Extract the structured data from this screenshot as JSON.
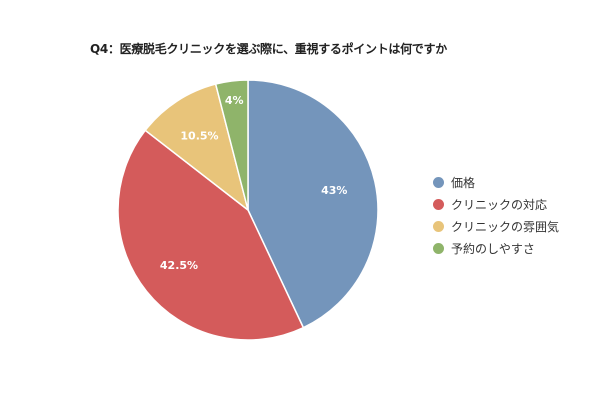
{
  "chart_data": {
    "type": "pie",
    "title": "Q4：医療脱毛クリニックを選ぶ際に、重視するポイントは何ですか",
    "categories": [
      "価格",
      "クリニックの対応",
      "クリニックの雰囲気",
      "予約のしやすさ"
    ],
    "values": [
      43,
      42.5,
      10.5,
      4
    ],
    "data_labels": [
      "43%",
      "42.5%",
      "10.5%",
      "4%"
    ],
    "colors": [
      "#7495bb",
      "#d45b5b",
      "#e8c47a",
      "#8fb46a"
    ],
    "legend_position": "right",
    "start_angle": "12 o'clock",
    "direction": "clockwise"
  }
}
